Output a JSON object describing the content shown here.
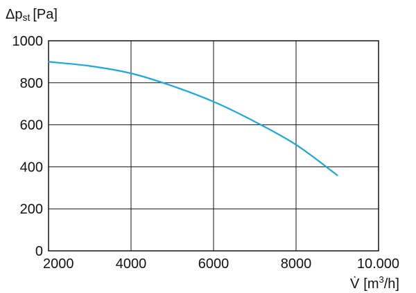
{
  "chart_data": {
    "type": "line",
    "title": "",
    "ylabel": {
      "prefix": "Δp",
      "subscript": "st",
      "unit": "[Pa]"
    },
    "xlabel": {
      "symbol": "V̇",
      "unit_open": "[m",
      "unit_sup": "3",
      "unit_close": "/h]"
    },
    "xlim": [
      2000,
      10000
    ],
    "ylim": [
      0,
      1000
    ],
    "xticks": [
      2000,
      4000,
      6000,
      8000,
      10000
    ],
    "xtick_labels": [
      "2000",
      "4000",
      "6000",
      "8000",
      "10.000"
    ],
    "yticks": [
      0,
      200,
      400,
      600,
      800,
      1000
    ],
    "ytick_labels": [
      "0",
      "200",
      "400",
      "600",
      "800",
      "1000"
    ],
    "grid": true,
    "line_color": "#1aa7e0",
    "series": [
      {
        "x": [
          2000,
          3000,
          4000,
          5000,
          6000,
          7000,
          8000,
          9000
        ],
        "y": [
          900,
          880,
          845,
          785,
          710,
          615,
          505,
          360
        ]
      }
    ]
  }
}
